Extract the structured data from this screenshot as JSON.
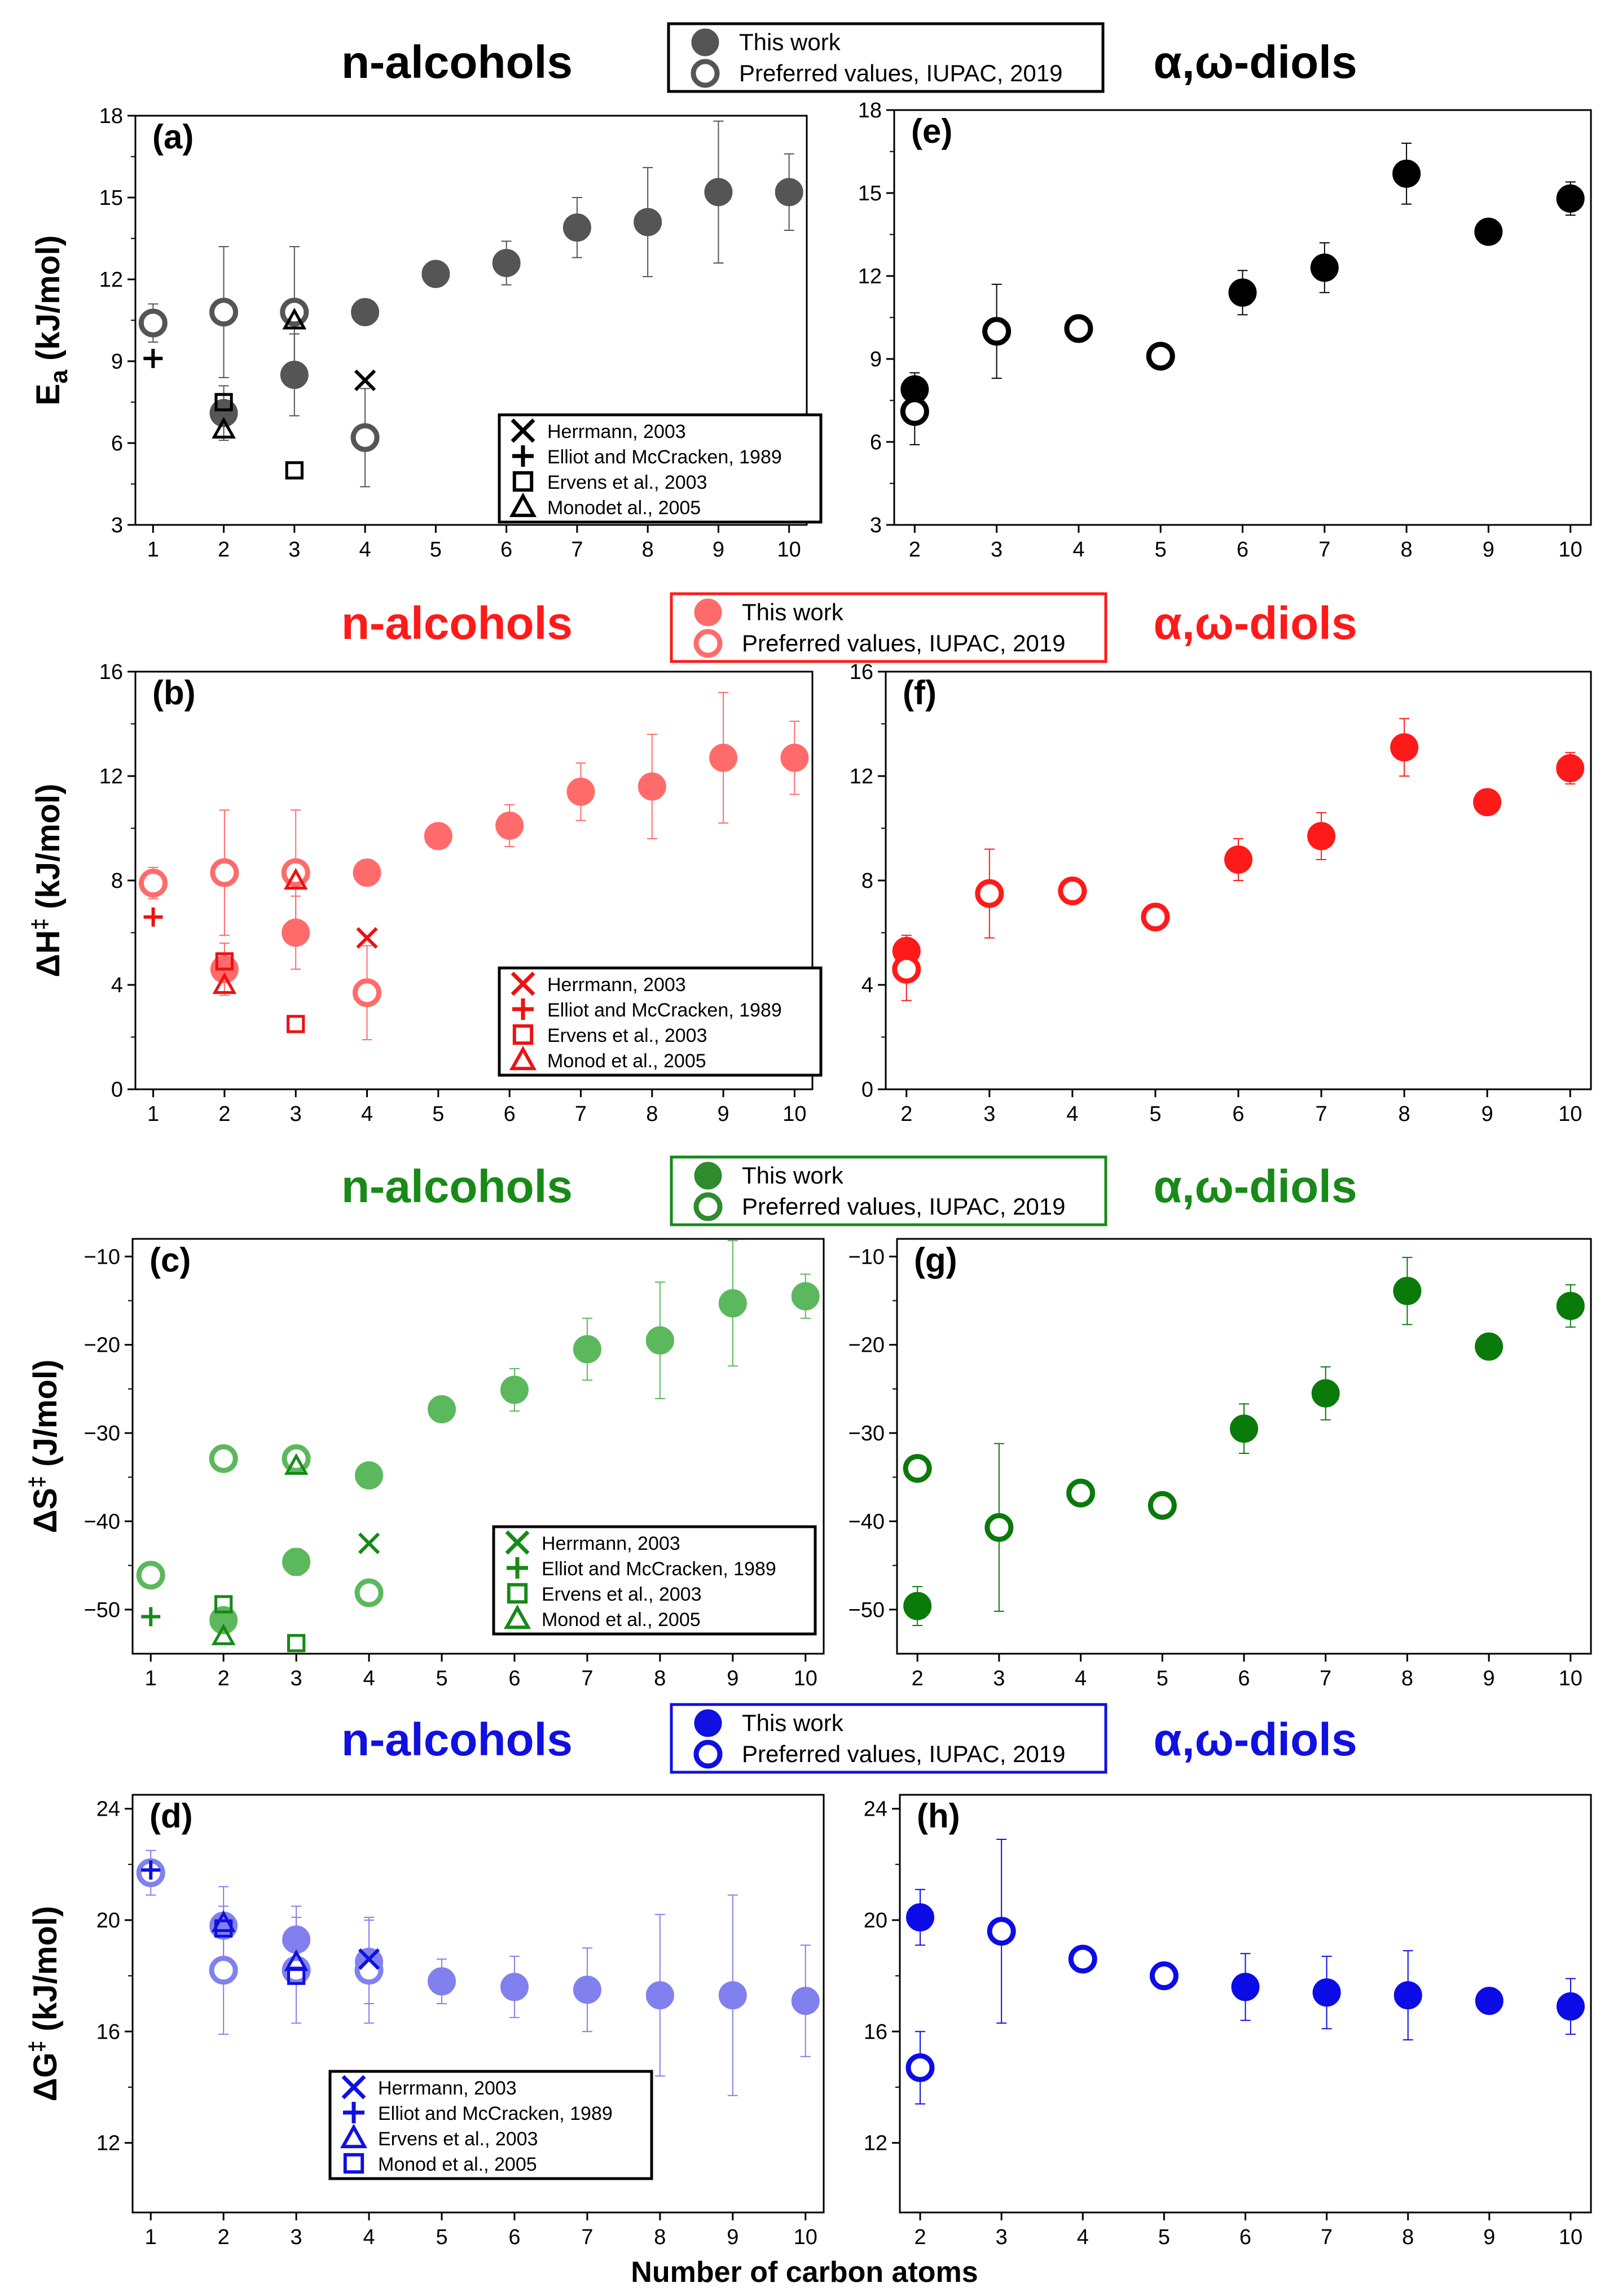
{
  "figure": {
    "x_axis_title": "Number of carbon atoms"
  },
  "rows": [
    {
      "color": "#555555",
      "titles": [
        "n-alcohols",
        "α,ω-diols"
      ],
      "legend": [
        "This work",
        "Preferred values, IUPAC, 2019"
      ],
      "ref_legend": [
        {
          "marker": "x",
          "label": "Herrmann, 2003"
        },
        {
          "marker": "plus",
          "label": "Elliot and McCracken, 1989"
        },
        {
          "marker": "square",
          "label": "Ervens et al., 2003"
        },
        {
          "marker": "triangle",
          "label": "Monodet al., 2005"
        }
      ]
    },
    {
      "color": "#ff6b6b",
      "titles": [
        "n-alcohols",
        "α,ω-diols"
      ],
      "legend": [
        "This work",
        "Preferred values, IUPAC, 2019"
      ],
      "ref_legend": [
        {
          "marker": "x",
          "label": "Herrmann, 2003"
        },
        {
          "marker": "plus",
          "label": "Elliot and McCracken, 1989"
        },
        {
          "marker": "square",
          "label": "Ervens et al., 2003"
        },
        {
          "marker": "triangle",
          "label": "Monod et al., 2005"
        }
      ]
    },
    {
      "color": "#2e8b2e",
      "titles": [
        "n-alcohols",
        "α,ω-diols"
      ],
      "legend": [
        "This work",
        "Preferred values, IUPAC, 2019"
      ],
      "ref_legend": [
        {
          "marker": "x",
          "label": "Herrmann, 2003"
        },
        {
          "marker": "plus",
          "label": "Elliot and McCracken, 1989"
        },
        {
          "marker": "square",
          "label": "Ervens et al., 2003"
        },
        {
          "marker": "triangle",
          "label": "Monod et al., 2005"
        }
      ]
    },
    {
      "color": "#1010e0",
      "titles": [
        "n-alcohols",
        "α,ω-diols"
      ],
      "legend": [
        "This work",
        "Preferred values, IUPAC, 2019"
      ],
      "ref_legend": [
        {
          "marker": "x",
          "label": "Herrmann, 2003"
        },
        {
          "marker": "plus",
          "label": "Elliot and McCracken, 1989"
        },
        {
          "marker": "triangle",
          "label": "Ervens et al., 2003"
        },
        {
          "marker": "square",
          "label": "Monod et al., 2005"
        }
      ]
    }
  ],
  "chart_data": [
    {
      "panel": "(a)",
      "type": "scatter",
      "color": "#555555",
      "xlim": [
        0.75,
        10.25
      ],
      "ylim": [
        3,
        18
      ],
      "yticks": [
        3,
        6,
        9,
        12,
        15,
        18
      ],
      "ylabel_main": "E",
      "ylabel_sub": "a",
      "ylabel_rest": " (kJ/mol)",
      "this_work": [
        {
          "x": 2,
          "y": 7.1,
          "err": 1.0
        },
        {
          "x": 3,
          "y": 8.5,
          "err": 1.5
        },
        {
          "x": 4,
          "y": 10.8,
          "err": 0.4
        },
        {
          "x": 5,
          "y": 12.2,
          "err": 0.3
        },
        {
          "x": 6,
          "y": 12.6,
          "err": 0.8
        },
        {
          "x": 7,
          "y": 13.9,
          "err": 1.1
        },
        {
          "x": 8,
          "y": 14.1,
          "err": 2.0
        },
        {
          "x": 9,
          "y": 15.2,
          "err": 2.6
        },
        {
          "x": 10,
          "y": 15.2,
          "err": 1.4
        }
      ],
      "iupac": [
        {
          "x": 1,
          "y": 10.4,
          "err": 0.7
        },
        {
          "x": 2,
          "y": 10.8,
          "err": 2.4
        },
        {
          "x": 3,
          "y": 10.8,
          "err": 2.4
        },
        {
          "x": 4,
          "y": 6.2,
          "err": 1.8
        }
      ],
      "refs": {
        "x": [
          {
            "x": 4,
            "y": 8.3
          }
        ],
        "plus": [
          {
            "x": 1,
            "y": 9.1
          }
        ],
        "square": [
          {
            "x": 2,
            "y": 7.5
          },
          {
            "x": 3,
            "y": 5.0
          }
        ],
        "triangle": [
          {
            "x": 2,
            "y": 6.5
          },
          {
            "x": 3,
            "y": 10.5
          }
        ]
      }
    },
    {
      "panel": "(e)",
      "type": "scatter",
      "color": "#000000",
      "xlim": [
        1.75,
        10.25
      ],
      "ylim": [
        3,
        18
      ],
      "yticks": [
        3,
        6,
        9,
        12,
        15,
        18
      ],
      "this_work": [
        {
          "x": 2,
          "y": 7.9,
          "err": 0.6
        },
        {
          "x": 6,
          "y": 11.4,
          "err": 0.8
        },
        {
          "x": 7,
          "y": 12.3,
          "err": 0.9
        },
        {
          "x": 8,
          "y": 15.7,
          "err": 1.1
        },
        {
          "x": 9,
          "y": 13.6,
          "err": 0.3
        },
        {
          "x": 10,
          "y": 14.8,
          "err": 0.6
        }
      ],
      "iupac": [
        {
          "x": 2,
          "y": 7.1,
          "err": 1.2
        },
        {
          "x": 3,
          "y": 10.0,
          "err": 1.7
        },
        {
          "x": 4,
          "y": 10.1,
          "err": 0.4
        },
        {
          "x": 5,
          "y": 9.1,
          "err": 0.3
        }
      ],
      "refs": {}
    },
    {
      "panel": "(b)",
      "type": "scatter",
      "color": "#ff6b6b",
      "xlim": [
        0.75,
        10.25
      ],
      "ylim": [
        0,
        16
      ],
      "yticks": [
        0,
        4,
        8,
        12,
        16
      ],
      "ylabel_main": "ΔH",
      "ylabel_sup": "‡",
      "ylabel_rest": " (kJ/mol)",
      "this_work": [
        {
          "x": 2,
          "y": 4.6,
          "err": 1.0
        },
        {
          "x": 3,
          "y": 6.0,
          "err": 1.4
        },
        {
          "x": 4,
          "y": 8.3,
          "err": 0.5
        },
        {
          "x": 5,
          "y": 9.7,
          "err": 0.3
        },
        {
          "x": 6,
          "y": 10.1,
          "err": 0.8
        },
        {
          "x": 7,
          "y": 11.4,
          "err": 1.1
        },
        {
          "x": 8,
          "y": 11.6,
          "err": 2.0
        },
        {
          "x": 9,
          "y": 12.7,
          "err": 2.5
        },
        {
          "x": 10,
          "y": 12.7,
          "err": 1.4
        }
      ],
      "iupac": [
        {
          "x": 1,
          "y": 7.9,
          "err": 0.6
        },
        {
          "x": 2,
          "y": 8.3,
          "err": 2.4
        },
        {
          "x": 3,
          "y": 8.3,
          "err": 2.4
        },
        {
          "x": 4,
          "y": 3.7,
          "err": 1.8
        }
      ],
      "refs": {
        "x": [
          {
            "x": 4,
            "y": 5.8
          }
        ],
        "plus": [
          {
            "x": 1,
            "y": 6.6
          }
        ],
        "square": [
          {
            "x": 2,
            "y": 4.9
          },
          {
            "x": 3,
            "y": 2.5
          }
        ],
        "triangle": [
          {
            "x": 2,
            "y": 4.0
          },
          {
            "x": 3,
            "y": 8.0
          }
        ]
      }
    },
    {
      "panel": "(f)",
      "type": "scatter",
      "color": "#ff1a1a",
      "xlim": [
        1.75,
        10.25
      ],
      "ylim": [
        0,
        16
      ],
      "yticks": [
        0,
        4,
        8,
        12,
        16
      ],
      "this_work": [
        {
          "x": 2,
          "y": 5.3,
          "err": 0.6
        },
        {
          "x": 6,
          "y": 8.8,
          "err": 0.8
        },
        {
          "x": 7,
          "y": 9.7,
          "err": 0.9
        },
        {
          "x": 8,
          "y": 13.1,
          "err": 1.1
        },
        {
          "x": 9,
          "y": 11.0,
          "err": 0.3
        },
        {
          "x": 10,
          "y": 12.3,
          "err": 0.6
        }
      ],
      "iupac": [
        {
          "x": 2,
          "y": 4.6,
          "err": 1.2
        },
        {
          "x": 3,
          "y": 7.5,
          "err": 1.7
        },
        {
          "x": 4,
          "y": 7.6,
          "err": 0.4
        },
        {
          "x": 5,
          "y": 6.6,
          "err": 0.3
        }
      ],
      "refs": {}
    },
    {
      "panel": "(c)",
      "type": "scatter",
      "color": "#5cb85c",
      "xlim": [
        0.75,
        10.25
      ],
      "ylim": [
        -55,
        -8
      ],
      "yticks": [
        -50,
        -40,
        -30,
        -20,
        -10
      ],
      "ylabel_main": "ΔS",
      "ylabel_sup": "‡",
      "ylabel_rest": " (J/mol)",
      "this_work": [
        {
          "x": 2,
          "y": -51.2,
          "err": 1.2
        },
        {
          "x": 3,
          "y": -44.6,
          "err": 1.5
        },
        {
          "x": 4,
          "y": -34.8,
          "err": 1.4
        },
        {
          "x": 5,
          "y": -27.3,
          "err": 1.2
        },
        {
          "x": 6,
          "y": -25.1,
          "err": 2.4
        },
        {
          "x": 7,
          "y": -20.5,
          "err": 3.5
        },
        {
          "x": 8,
          "y": -19.5,
          "err": 6.6
        },
        {
          "x": 9,
          "y": -15.3,
          "err": 7.1
        },
        {
          "x": 10,
          "y": -14.5,
          "err": 2.5
        }
      ],
      "iupac": [
        {
          "x": 1,
          "y": -46.1,
          "err": 0.8
        },
        {
          "x": 2,
          "y": -32.9,
          "err": 0.5
        },
        {
          "x": 3,
          "y": -32.9,
          "err": 0.5
        },
        {
          "x": 4,
          "y": -48.1,
          "err": 0.6
        }
      ],
      "refs": {
        "x": [
          {
            "x": 4,
            "y": -42.5
          }
        ],
        "plus": [
          {
            "x": 1,
            "y": -50.8
          }
        ],
        "square": [
          {
            "x": 2,
            "y": -49.4
          },
          {
            "x": 3,
            "y": -53.8
          }
        ],
        "triangle": [
          {
            "x": 2,
            "y": -53.0
          },
          {
            "x": 3,
            "y": -33.7
          }
        ]
      }
    },
    {
      "panel": "(g)",
      "type": "scatter",
      "color": "#0a7a0a",
      "xlim": [
        1.75,
        10.25
      ],
      "ylim": [
        -55,
        -8
      ],
      "yticks": [
        -50,
        -40,
        -30,
        -20,
        -10
      ],
      "this_work": [
        {
          "x": 2,
          "y": -49.6,
          "err": 2.2
        },
        {
          "x": 6,
          "y": -29.5,
          "err": 2.8
        },
        {
          "x": 7,
          "y": -25.5,
          "err": 3.0
        },
        {
          "x": 8,
          "y": -13.9,
          "err": 3.8
        },
        {
          "x": 9,
          "y": -20.2,
          "err": 0.5
        },
        {
          "x": 10,
          "y": -15.6,
          "err": 2.4
        }
      ],
      "iupac": [
        {
          "x": 2,
          "y": -34.0,
          "err": 0.6
        },
        {
          "x": 3,
          "y": -40.7,
          "err": 9.5
        },
        {
          "x": 4,
          "y": -36.8,
          "err": 0.5
        },
        {
          "x": 5,
          "y": -38.2,
          "err": 0.5
        }
      ],
      "refs": {}
    },
    {
      "panel": "(d)",
      "type": "scatter",
      "color": "#8080ee",
      "xlim": [
        0.75,
        10.25
      ],
      "ylim": [
        9.5,
        24.5
      ],
      "yticks": [
        12,
        16,
        20,
        24
      ],
      "ylabel_main": "ΔG",
      "ylabel_sup": "‡",
      "ylabel_rest": " (kJ/mol)",
      "this_work": [
        {
          "x": 2,
          "y": 19.8,
          "err": 1.4
        },
        {
          "x": 3,
          "y": 19.3,
          "err": 1.2
        },
        {
          "x": 4,
          "y": 18.5,
          "err": 1.5
        },
        {
          "x": 5,
          "y": 17.8,
          "err": 0.8
        },
        {
          "x": 6,
          "y": 17.6,
          "err": 1.1
        },
        {
          "x": 7,
          "y": 17.5,
          "err": 1.5
        },
        {
          "x": 8,
          "y": 17.3,
          "err": 2.9
        },
        {
          "x": 9,
          "y": 17.3,
          "err": 3.6
        },
        {
          "x": 10,
          "y": 17.1,
          "err": 2.0
        }
      ],
      "iupac": [
        {
          "x": 1,
          "y": 21.7,
          "err": 0.8
        },
        {
          "x": 2,
          "y": 18.2,
          "err": 2.3
        },
        {
          "x": 3,
          "y": 18.2,
          "err": 1.9
        },
        {
          "x": 4,
          "y": 18.2,
          "err": 1.9
        }
      ],
      "refs": {
        "x": [
          {
            "x": 4,
            "y": 18.6
          }
        ],
        "plus": [
          {
            "x": 1,
            "y": 21.8
          }
        ],
        "triangle": [
          {
            "x": 2,
            "y": 19.9
          },
          {
            "x": 3,
            "y": 18.5
          }
        ],
        "square": [
          {
            "x": 2,
            "y": 19.7
          },
          {
            "x": 3,
            "y": 18.0
          }
        ]
      }
    },
    {
      "panel": "(h)",
      "type": "scatter",
      "color": "#0c0ce6",
      "xlim": [
        1.75,
        10.25
      ],
      "ylim": [
        9.5,
        24.5
      ],
      "yticks": [
        12,
        16,
        20,
        24
      ],
      "this_work": [
        {
          "x": 2,
          "y": 20.1,
          "err": 1.0
        },
        {
          "x": 6,
          "y": 17.6,
          "err": 1.2
        },
        {
          "x": 7,
          "y": 17.4,
          "err": 1.3
        },
        {
          "x": 8,
          "y": 17.3,
          "err": 1.6
        },
        {
          "x": 9,
          "y": 17.1,
          "err": 0.3
        },
        {
          "x": 10,
          "y": 16.9,
          "err": 1.0
        }
      ],
      "iupac": [
        {
          "x": 2,
          "y": 14.7,
          "err": 1.3
        },
        {
          "x": 3,
          "y": 19.6,
          "err": 3.3
        },
        {
          "x": 4,
          "y": 18.6,
          "err": 0.4
        },
        {
          "x": 5,
          "y": 18.0,
          "err": 0.3
        }
      ],
      "refs": {}
    }
  ]
}
